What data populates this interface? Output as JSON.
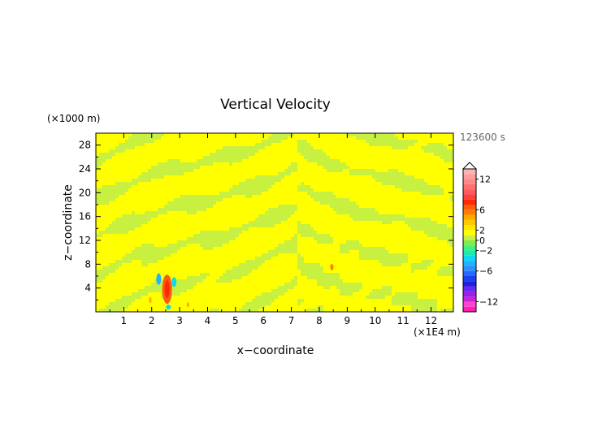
{
  "chart_data": {
    "type": "heatmap",
    "title": "Vertical Velocity",
    "xlabel": "x−coordinate",
    "ylabel": "z−coordinate",
    "x_unit": "(×1E4 m)",
    "y_unit": "(×1000 m)",
    "time_label": "123600 s",
    "xlim": [
      0,
      12.8
    ],
    "ylim": [
      0,
      30
    ],
    "x_ticks": [
      1,
      2,
      3,
      4,
      5,
      6,
      7,
      8,
      9,
      10,
      11,
      12
    ],
    "y_ticks": [
      4,
      8,
      12,
      16,
      20,
      24,
      28
    ],
    "x_tick_labels": [
      "1",
      "2",
      "3",
      "4",
      "5",
      "6",
      "7",
      "8",
      "9",
      "10",
      "11",
      "12"
    ],
    "y_tick_labels": [
      "4",
      "8",
      "12",
      "16",
      "20",
      "24",
      "28"
    ],
    "colorbar": {
      "levels": [
        -14,
        -13,
        -12,
        -11,
        -10,
        -9,
        -8,
        -7,
        -6,
        -5,
        -4,
        -3,
        -2,
        -1,
        0,
        1,
        2,
        3,
        4,
        5,
        6,
        7,
        8,
        9,
        10,
        11,
        12,
        13,
        14
      ],
      "colors": [
        "#ff1fb4",
        "#ff44cc",
        "#c820e0",
        "#9a20e8",
        "#6428f0",
        "#2020d8",
        "#1a40f0",
        "#2868ff",
        "#3090ff",
        "#20b4ff",
        "#10d8f0",
        "#20e8b0",
        "#40f080",
        "#80ec50",
        "#c8f040",
        "#ffff00",
        "#ffe800",
        "#ffc800",
        "#ffa800",
        "#ff8000",
        "#ff5a10",
        "#ff2800",
        "#ff4040",
        "#ff5a5a",
        "#ff7070",
        "#ff8888",
        "#ff9c9c",
        "#ffb4b4"
      ],
      "tick_values": [
        12,
        6,
        2,
        0,
        -2,
        -6,
        -12
      ],
      "tick_labels": [
        "12",
        "6",
        "2",
        "0",
        "−2",
        "−6",
        "−12"
      ]
    }
  }
}
